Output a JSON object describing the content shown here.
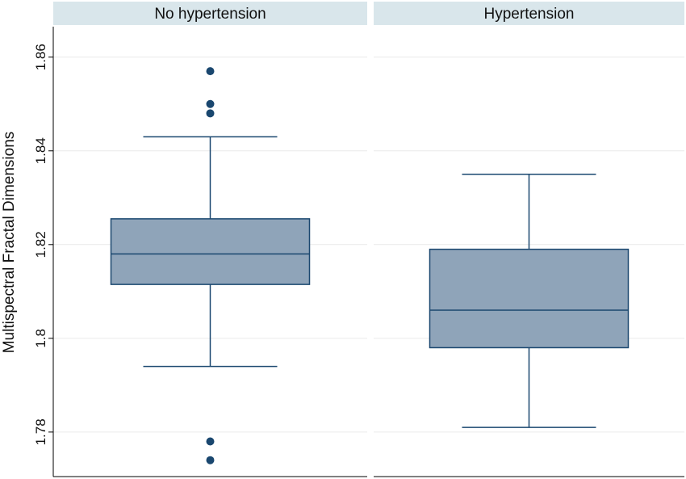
{
  "chart_data": {
    "type": "box",
    "ylabel": "Multispectral Fractal Dimensions",
    "yticks": [
      1.78,
      1.8,
      1.82,
      1.84,
      1.86
    ],
    "tick_labels": [
      "1.78",
      "1.8",
      "1.82",
      "1.84",
      "1.86"
    ],
    "ylim": [
      1.7705,
      1.8665
    ],
    "grid": true,
    "colors": {
      "box_fill": "#8fa4b9",
      "box_edge": "#1a476f",
      "outlier": "#1a476f",
      "panel_header": "#d9e6eb"
    },
    "panels": [
      {
        "title": "No hypertension",
        "min": 1.794,
        "q1": 1.8115,
        "median": 1.818,
        "q3": 1.8255,
        "max": 1.843,
        "outliers": [
          1.857,
          1.85,
          1.848,
          1.778,
          1.774
        ]
      },
      {
        "title": "Hypertension",
        "min": 1.781,
        "q1": 1.798,
        "median": 1.806,
        "q3": 1.819,
        "max": 1.835,
        "outliers": []
      }
    ]
  }
}
